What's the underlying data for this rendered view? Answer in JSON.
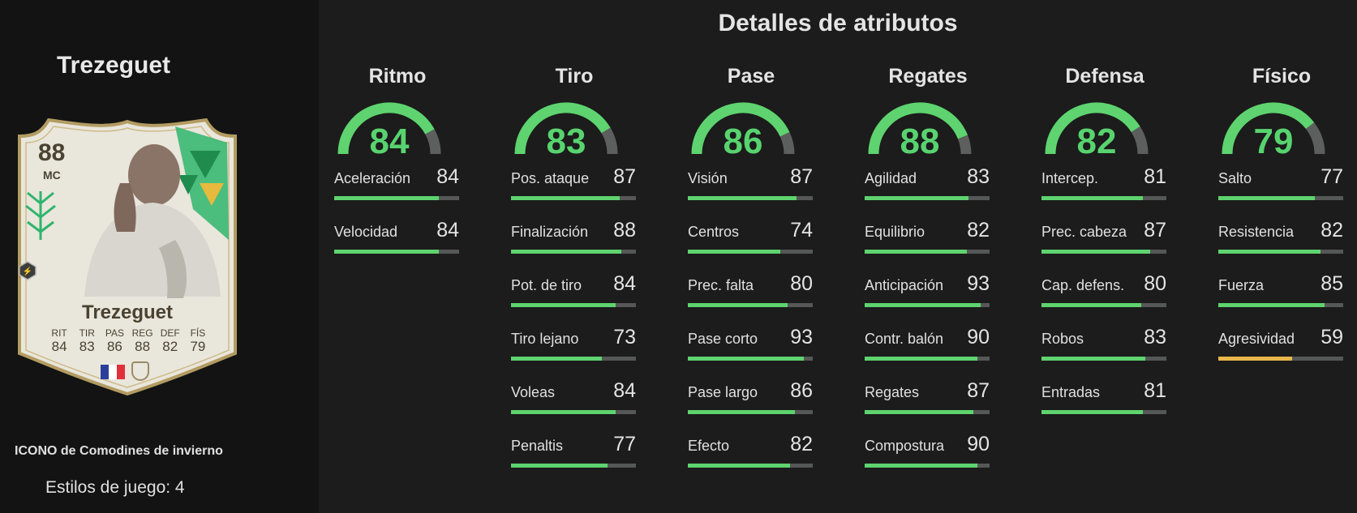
{
  "player": {
    "name": "Trezeguet",
    "card_rating": "88",
    "card_position": "MC",
    "card_stats": [
      {
        "label": "RIT",
        "value": "84"
      },
      {
        "label": "TIR",
        "value": "83"
      },
      {
        "label": "PAS",
        "value": "86"
      },
      {
        "label": "REG",
        "value": "88"
      },
      {
        "label": "DEF",
        "value": "82"
      },
      {
        "label": "FÍS",
        "value": "79"
      }
    ],
    "item_type": "ICONO de Comodines de invierno",
    "playstyles": "Estilos de juego: 4",
    "colors": {
      "card_base": "#e9e6dc",
      "card_border": "#b39c62",
      "accent_green": "#2fb56c"
    }
  },
  "section_title": "Detalles de atributos",
  "colors": {
    "good": "#5ed36f",
    "average": "#e8b74a",
    "track": "#555856"
  },
  "categories": [
    {
      "name": "Ritmo",
      "value": 84,
      "stats": [
        {
          "name": "Aceleración",
          "value": 84
        },
        {
          "name": "Velocidad",
          "value": 84
        }
      ]
    },
    {
      "name": "Tiro",
      "value": 83,
      "stats": [
        {
          "name": "Pos. ataque",
          "value": 87
        },
        {
          "name": "Finalización",
          "value": 88
        },
        {
          "name": "Pot. de tiro",
          "value": 84
        },
        {
          "name": "Tiro lejano",
          "value": 73
        },
        {
          "name": "Voleas",
          "value": 84
        },
        {
          "name": "Penaltis",
          "value": 77
        }
      ]
    },
    {
      "name": "Pase",
      "value": 86,
      "stats": [
        {
          "name": "Visión",
          "value": 87
        },
        {
          "name": "Centros",
          "value": 74
        },
        {
          "name": "Prec. falta",
          "value": 80
        },
        {
          "name": "Pase corto",
          "value": 93
        },
        {
          "name": "Pase largo",
          "value": 86
        },
        {
          "name": "Efecto",
          "value": 82
        }
      ]
    },
    {
      "name": "Regates",
      "value": 88,
      "stats": [
        {
          "name": "Agilidad",
          "value": 83
        },
        {
          "name": "Equilibrio",
          "value": 82
        },
        {
          "name": "Anticipación",
          "value": 93
        },
        {
          "name": "Contr. balón",
          "value": 90
        },
        {
          "name": "Regates",
          "value": 87
        },
        {
          "name": "Compostura",
          "value": 90
        }
      ]
    },
    {
      "name": "Defensa",
      "value": 82,
      "stats": [
        {
          "name": "Intercep.",
          "value": 81
        },
        {
          "name": "Prec. cabeza",
          "value": 87
        },
        {
          "name": "Cap. defens.",
          "value": 80
        },
        {
          "name": "Robos",
          "value": 83
        },
        {
          "name": "Entradas",
          "value": 81
        }
      ]
    },
    {
      "name": "Físico",
      "value": 79,
      "stats": [
        {
          "name": "Salto",
          "value": 77
        },
        {
          "name": "Resistencia",
          "value": 82
        },
        {
          "name": "Fuerza",
          "value": 85
        },
        {
          "name": "Agresividad",
          "value": 59
        }
      ]
    }
  ]
}
